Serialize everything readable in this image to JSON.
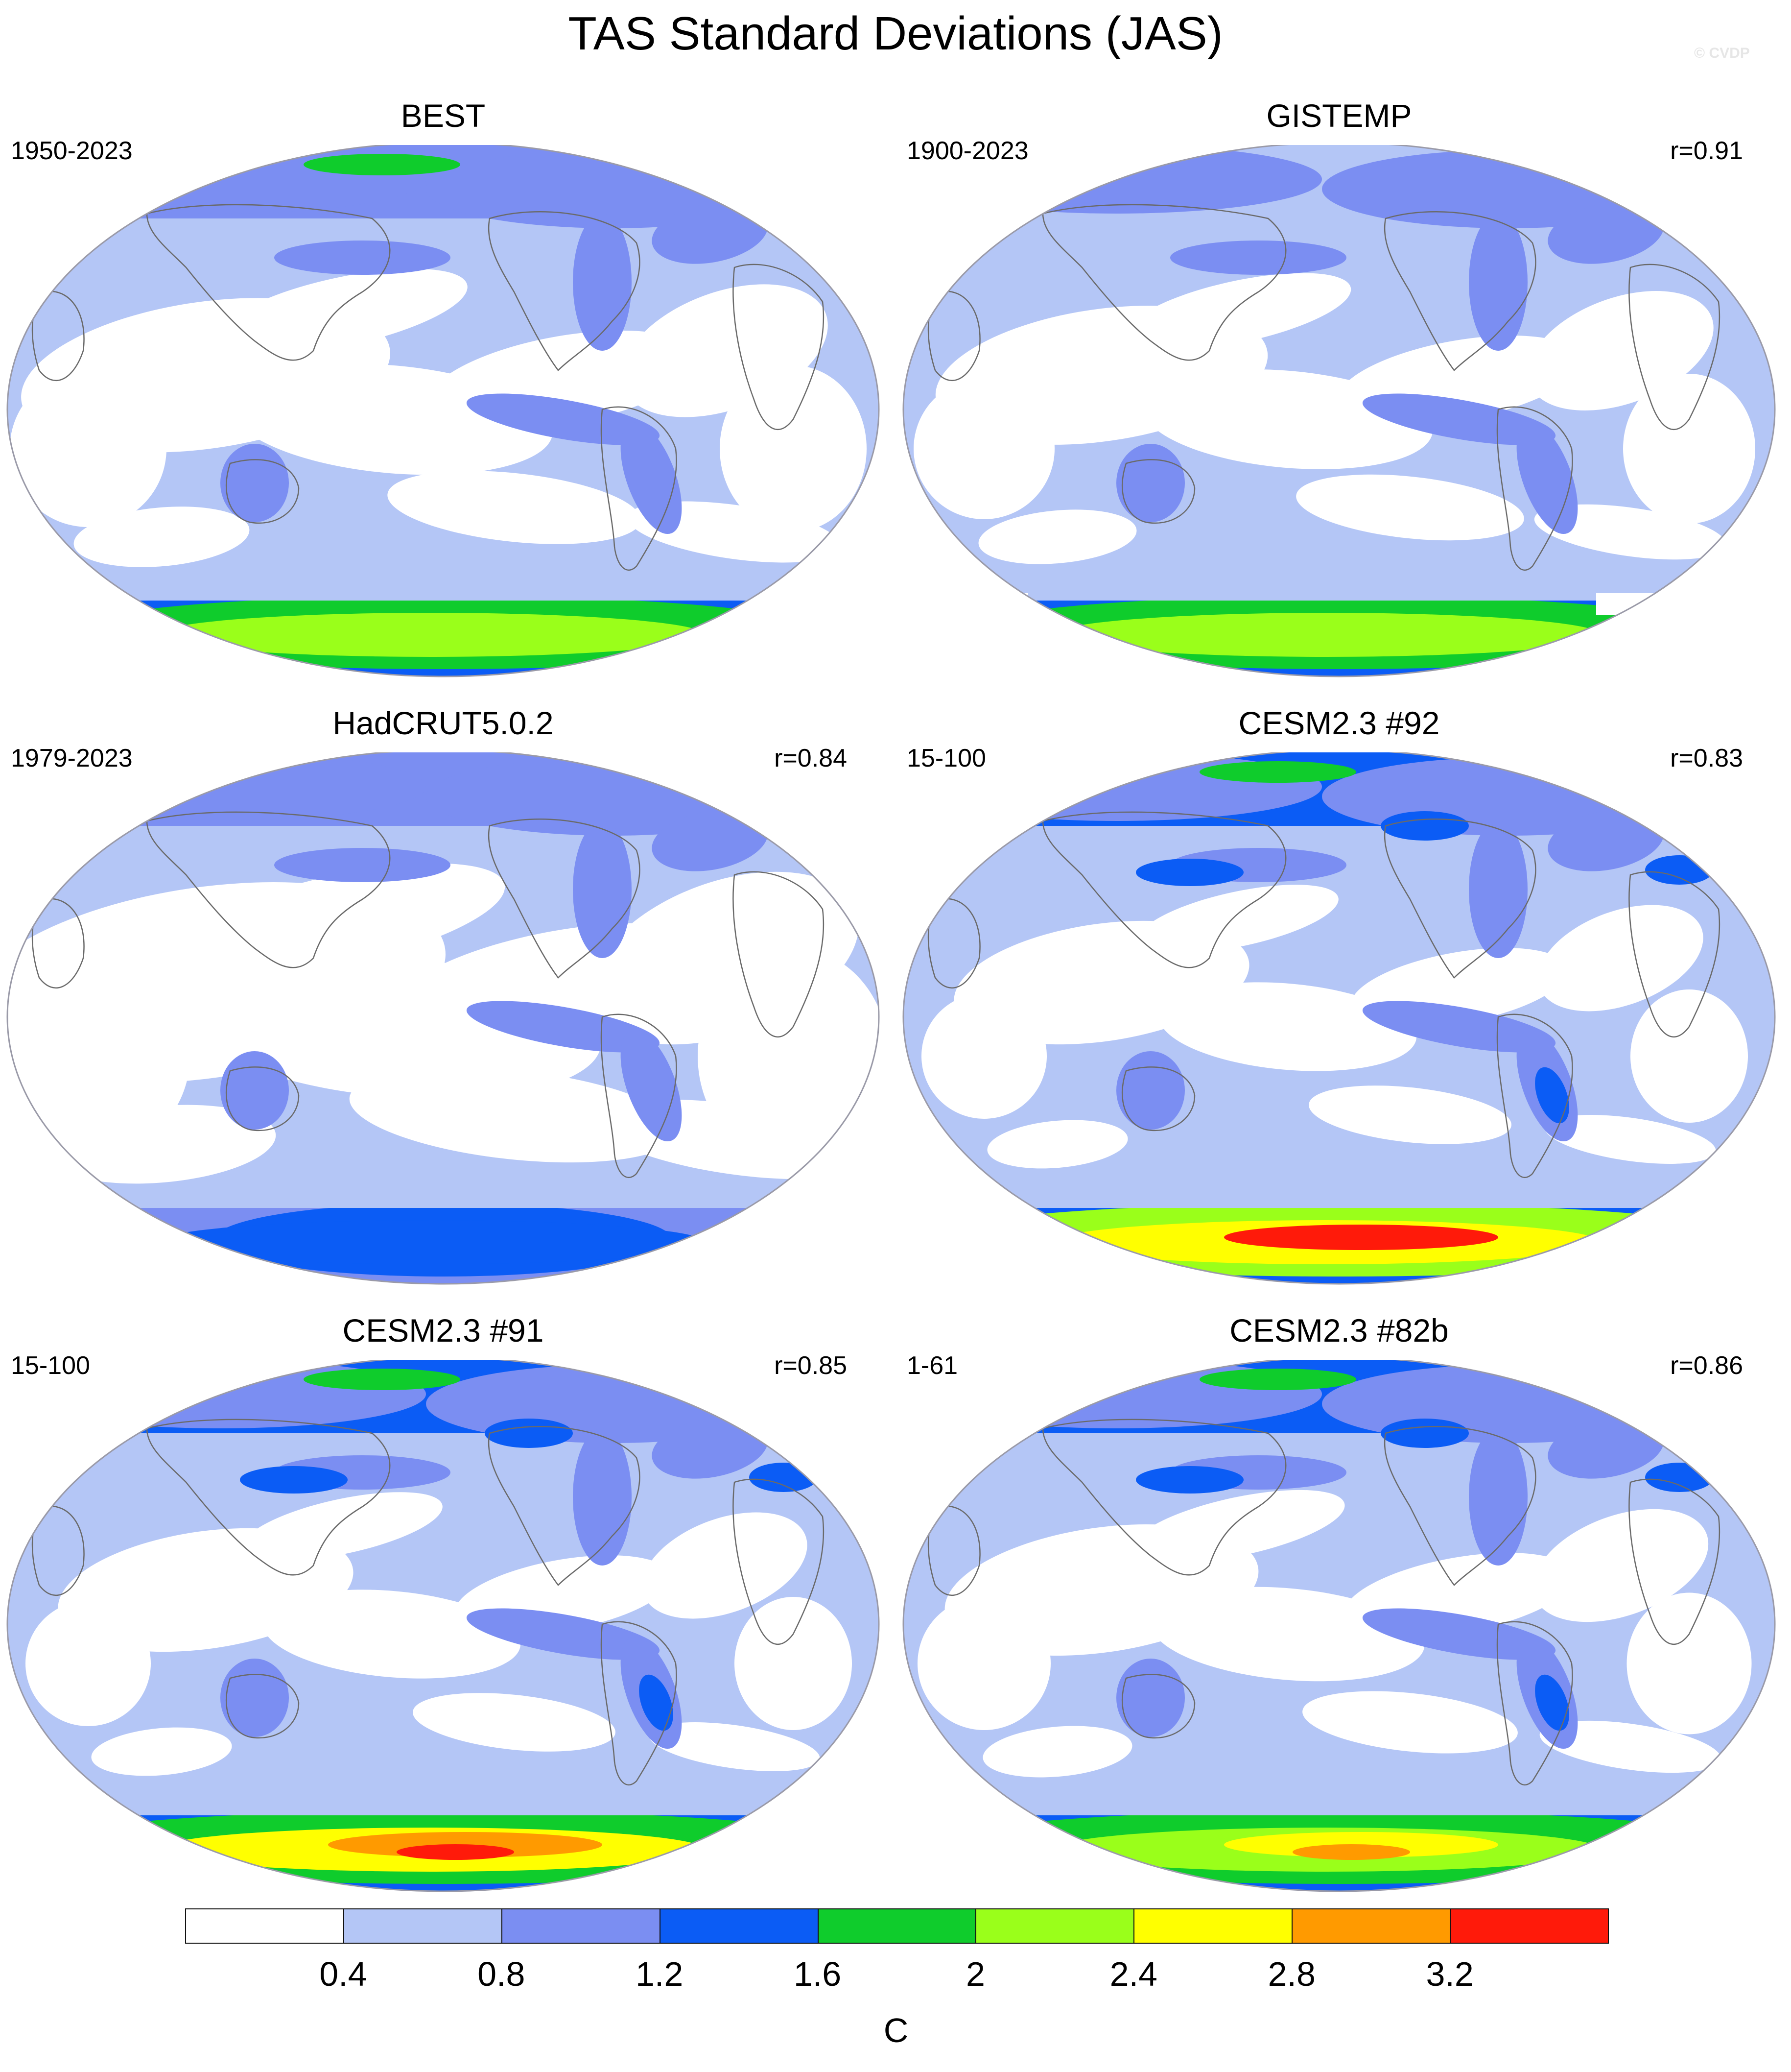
{
  "title": "TAS Standard Deviations (JAS)",
  "credit": "© CVDP",
  "panels": [
    {
      "name": "BEST",
      "period": "1950-2023",
      "corr": ""
    },
    {
      "name": "GISTEMP",
      "period": "1900-2023",
      "corr": "r=0.91"
    },
    {
      "name": "HadCRUT5.0.2",
      "period": "1979-2023",
      "corr": "r=0.84"
    },
    {
      "name": "CESM2.3 #92",
      "period": "15-100",
      "corr": "r=0.83"
    },
    {
      "name": "CESM2.3 #91",
      "period": "15-100",
      "corr": "r=0.85"
    },
    {
      "name": "CESM2.3 #82b",
      "period": "1-61",
      "corr": "r=0.86"
    }
  ],
  "colorbar": {
    "units": "C",
    "labels": [
      "0.4",
      "0.8",
      "1.2",
      "1.6",
      "2",
      "2.4",
      "2.8",
      "3.2"
    ],
    "colors": [
      "#ffffff",
      "#b4c6f6",
      "#7b8ef2",
      "#0b5cf5",
      "#0fcc2c",
      "#9aff1a",
      "#ffff00",
      "#ff9a00",
      "#ff1a0a"
    ]
  },
  "map_style": {
    "outline_color": "#9a9aa8",
    "coast_color": "#6a6a6a"
  }
}
